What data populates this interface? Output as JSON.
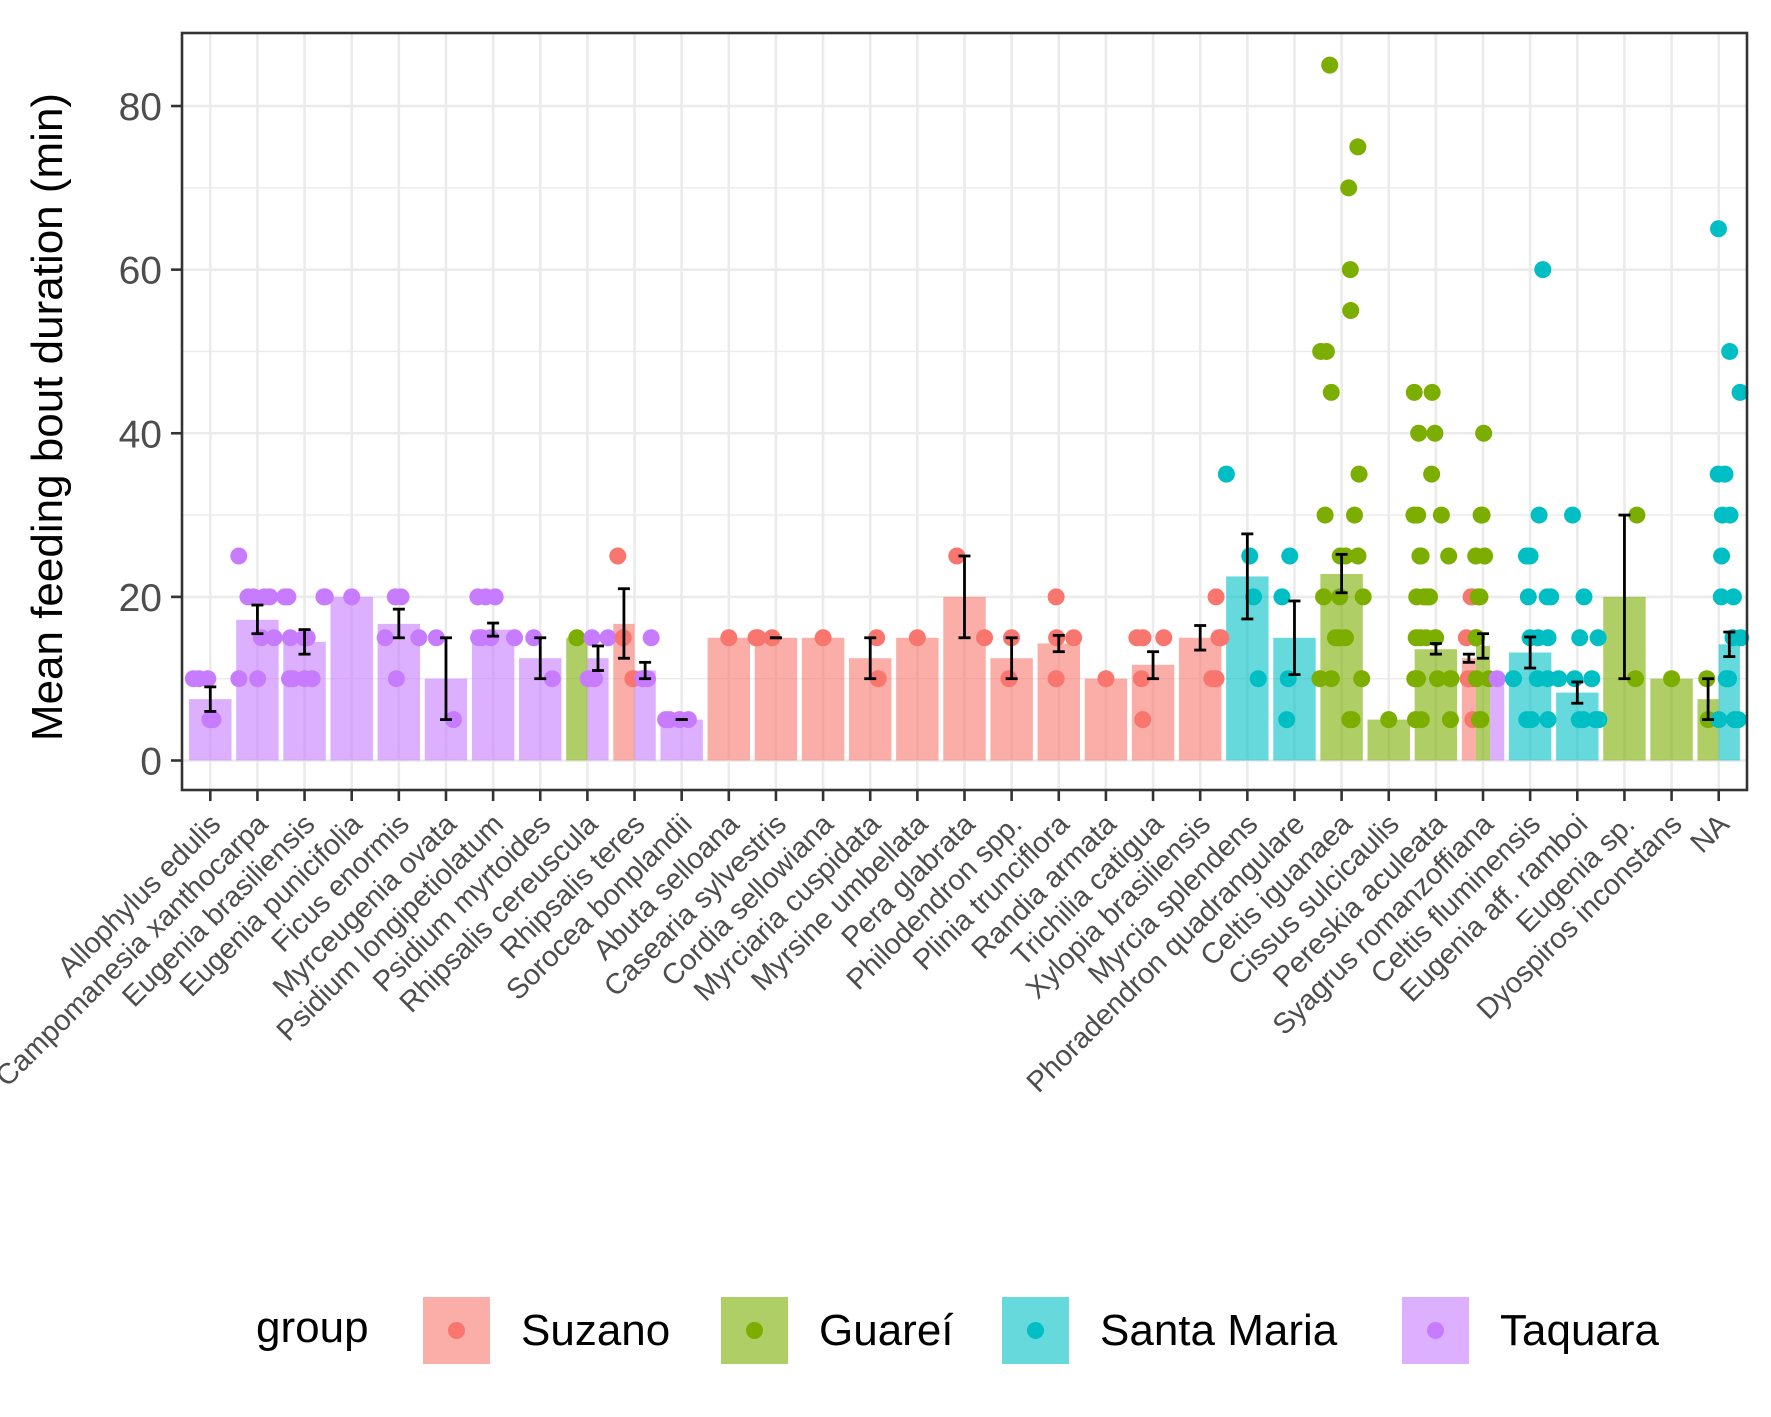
{
  "chart_data": {
    "type": "bar",
    "title": "",
    "xlabel": "",
    "ylabel": "Mean feeding bout duration (min)",
    "ylim": [
      -4,
      89
    ],
    "yticks": [
      0,
      20,
      40,
      60,
      80
    ],
    "grid": true,
    "legend_position": "bottom",
    "legend": {
      "title": "group",
      "entries": [
        {
          "name": "Suzano",
          "color": "#F8766D"
        },
        {
          "name": "Guareí",
          "color": "#7CAE00"
        },
        {
          "name": "Santa Maria",
          "color": "#00BFC4"
        },
        {
          "name": "Taquara",
          "color": "#C77CFF"
        }
      ]
    },
    "categories": [
      "Allophylus edulis",
      "Campomanesia xanthocarpa",
      "Eugenia brasiliensis",
      "Eugenia punicifolia",
      "Ficus enormis",
      "Myrceugenia ovata",
      "Psidium longipetiolatum",
      "Psidium myrtoides",
      "Rhipsalis cereuscula",
      "Rhipsalis teres",
      "Sorocea bonplandii",
      "Abuta selloana",
      "Casearia sylvestris",
      "Cordia sellowiana",
      "Myrciaria cuspidata",
      "Myrsine umbellata",
      "Pera glabrata",
      "Philodendron spp.",
      "Plinia trunciflora",
      "Randia armata",
      "Trichilia catigua",
      "Xylopia brasiliensis",
      "Myrcia splendens",
      "Phoradendron quadrangulare",
      "Celtis iguanaea",
      "Cissus sulcicaulis",
      "Pereskia aculeata",
      "Syagrus romanzoffiana",
      "Celtis fluminensis",
      "Eugenia aff. ramboi",
      "Eugenia sp.",
      "Dyospiros inconstans",
      "NA"
    ],
    "bars": [
      {
        "category": 0,
        "group": "Taquara",
        "offset": 0,
        "width": 0.9,
        "mean": 7.5,
        "err": [
          6,
          9
        ],
        "points": [
          5,
          5,
          10,
          10,
          10
        ]
      },
      {
        "category": 1,
        "group": "Taquara",
        "offset": 0,
        "width": 0.9,
        "mean": 17.2,
        "err": [
          15.5,
          19
        ],
        "points": [
          10,
          10,
          15,
          15,
          20,
          20,
          20,
          20,
          25
        ]
      },
      {
        "category": 2,
        "group": "Taquara",
        "offset": 0,
        "width": 0.9,
        "mean": 14.5,
        "err": [
          13,
          16
        ],
        "points": [
          10,
          10,
          10,
          10,
          15,
          15,
          15,
          20,
          20,
          20,
          20
        ]
      },
      {
        "category": 3,
        "group": "Taquara",
        "offset": 0,
        "width": 0.9,
        "mean": 20,
        "err": null,
        "points": [
          20
        ]
      },
      {
        "category": 4,
        "group": "Taquara",
        "offset": 0,
        "width": 0.9,
        "mean": 16.7,
        "err": [
          15,
          18.5
        ],
        "points": [
          10,
          15,
          15,
          20,
          20
        ]
      },
      {
        "category": 5,
        "group": "Taquara",
        "offset": 0,
        "width": 0.9,
        "mean": 10,
        "err": [
          5,
          15
        ],
        "points": [
          5,
          15
        ]
      },
      {
        "category": 6,
        "group": "Taquara",
        "offset": 0,
        "width": 0.9,
        "mean": 16,
        "err": [
          15.2,
          16.8
        ],
        "points": [
          15,
          15,
          15,
          15,
          20,
          20,
          20
        ]
      },
      {
        "category": 7,
        "group": "Taquara",
        "offset": 0,
        "width": 0.9,
        "mean": 12.5,
        "err": [
          10,
          15
        ],
        "points": [
          10,
          15
        ]
      },
      {
        "category": 8,
        "group": "Guareí",
        "offset": -0.225,
        "width": 0.45,
        "mean": 15,
        "err": null,
        "points": [
          15
        ]
      },
      {
        "category": 8,
        "group": "Taquara",
        "offset": 0.225,
        "width": 0.45,
        "mean": 12.5,
        "err": [
          11,
          14
        ],
        "points": [
          10,
          10,
          15,
          15
        ]
      },
      {
        "category": 9,
        "group": "Suzano",
        "offset": -0.225,
        "width": 0.45,
        "mean": 16.7,
        "err": [
          12.5,
          21
        ],
        "points": [
          10,
          15,
          25
        ]
      },
      {
        "category": 9,
        "group": "Taquara",
        "offset": 0.225,
        "width": 0.45,
        "mean": 11,
        "err": [
          10,
          12
        ],
        "points": [
          10,
          10,
          15
        ]
      },
      {
        "category": 10,
        "group": "Taquara",
        "offset": 0,
        "width": 0.9,
        "mean": 5,
        "err": [
          5,
          5
        ],
        "points": [
          5,
          5,
          5,
          5
        ]
      },
      {
        "category": 11,
        "group": "Suzano",
        "offset": 0,
        "width": 0.9,
        "mean": 15,
        "err": null,
        "points": [
          15
        ]
      },
      {
        "category": 12,
        "group": "Suzano",
        "offset": 0,
        "width": 0.9,
        "mean": 15,
        "err": [
          15,
          15
        ],
        "points": [
          15,
          15,
          15
        ]
      },
      {
        "category": 13,
        "group": "Suzano",
        "offset": 0,
        "width": 0.9,
        "mean": 15,
        "err": null,
        "points": [
          15
        ]
      },
      {
        "category": 14,
        "group": "Suzano",
        "offset": 0,
        "width": 0.9,
        "mean": 12.5,
        "err": [
          10,
          15
        ],
        "points": [
          10,
          15
        ]
      },
      {
        "category": 15,
        "group": "Suzano",
        "offset": 0,
        "width": 0.9,
        "mean": 15,
        "err": null,
        "points": [
          15
        ]
      },
      {
        "category": 16,
        "group": "Suzano",
        "offset": 0,
        "width": 0.9,
        "mean": 20,
        "err": [
          15,
          25
        ],
        "points": [
          15,
          25
        ]
      },
      {
        "category": 17,
        "group": "Suzano",
        "offset": 0,
        "width": 0.9,
        "mean": 12.5,
        "err": [
          10,
          15
        ],
        "points": [
          10,
          15
        ]
      },
      {
        "category": 18,
        "group": "Suzano",
        "offset": 0,
        "width": 0.9,
        "mean": 14.3,
        "err": [
          13.3,
          15.3
        ],
        "points": [
          10,
          15,
          15,
          20
        ]
      },
      {
        "category": 19,
        "group": "Suzano",
        "offset": 0,
        "width": 0.9,
        "mean": 10,
        "err": null,
        "points": [
          10
        ]
      },
      {
        "category": 20,
        "group": "Suzano",
        "offset": 0,
        "width": 0.9,
        "mean": 11.7,
        "err": [
          10,
          13.3
        ],
        "points": [
          5,
          10,
          15,
          15,
          15
        ]
      },
      {
        "category": 21,
        "group": "Suzano",
        "offset": 0,
        "width": 0.9,
        "mean": 15,
        "err": [
          13.5,
          16.5
        ],
        "points": [
          10,
          10,
          15,
          15,
          20
        ]
      },
      {
        "category": 22,
        "group": "Santa Maria",
        "offset": 0,
        "width": 0.9,
        "mean": 22.5,
        "err": [
          17.3,
          27.7
        ],
        "points": [
          10,
          20,
          25,
          35
        ]
      },
      {
        "category": 23,
        "group": "Santa Maria",
        "offset": 0,
        "width": 0.9,
        "mean": 15,
        "err": [
          10.5,
          19.5
        ],
        "points": [
          5,
          10,
          20,
          25
        ]
      },
      {
        "category": 24,
        "group": "Guareí",
        "offset": 0,
        "width": 0.9,
        "mean": 22.8,
        "err": [
          20.5,
          25.2
        ],
        "points": [
          5,
          5,
          10,
          10,
          10,
          15,
          15,
          15,
          20,
          20,
          20,
          25,
          25,
          25,
          30,
          30,
          35,
          45,
          50,
          50,
          55,
          60,
          70,
          75,
          85
        ]
      },
      {
        "category": 25,
        "group": "Guareí",
        "offset": 0,
        "width": 0.9,
        "mean": 5,
        "err": null,
        "points": [
          5
        ]
      },
      {
        "category": 26,
        "group": "Guareí",
        "offset": 0,
        "width": 0.9,
        "mean": 13.6,
        "err": [
          13,
          14.3
        ],
        "points": [
          5,
          5,
          5,
          10,
          10,
          10,
          10,
          10,
          15,
          15,
          15,
          15,
          15,
          20,
          20,
          20,
          20,
          25,
          25,
          25,
          30,
          30,
          30,
          35,
          40,
          40,
          45,
          45
        ]
      },
      {
        "category": 27,
        "group": "Suzano",
        "offset": -0.3,
        "width": 0.3,
        "mean": 12.5,
        "err": [
          12,
          13
        ],
        "points": [
          5,
          10,
          10,
          15,
          15,
          20,
          20
        ]
      },
      {
        "category": 27,
        "group": "Guareí",
        "offset": 0,
        "width": 0.3,
        "mean": 14,
        "err": [
          12.5,
          15.5
        ],
        "points": [
          5,
          5,
          10,
          10,
          15,
          15,
          20,
          20,
          25,
          25,
          30,
          30,
          40
        ]
      },
      {
        "category": 27,
        "group": "Taquara",
        "offset": 0.3,
        "width": 0.3,
        "mean": 10,
        "err": null,
        "points": [
          10
        ]
      },
      {
        "category": 28,
        "group": "Santa Maria",
        "offset": 0,
        "width": 0.9,
        "mean": 13.2,
        "err": [
          11.3,
          15.1
        ],
        "points": [
          5,
          5,
          5,
          10,
          10,
          10,
          15,
          15,
          15,
          20,
          20,
          20,
          25,
          25,
          30,
          60
        ]
      },
      {
        "category": 29,
        "group": "Santa Maria",
        "offset": 0,
        "width": 0.9,
        "mean": 8.3,
        "err": [
          7,
          9.6
        ],
        "points": [
          5,
          5,
          5,
          5,
          10,
          10,
          10,
          15,
          15,
          20,
          30
        ]
      },
      {
        "category": 30,
        "group": "Guareí",
        "offset": 0,
        "width": 0.9,
        "mean": 20,
        "err": [
          10,
          30
        ],
        "points": [
          10,
          30
        ]
      },
      {
        "category": 31,
        "group": "Guareí",
        "offset": 0,
        "width": 0.9,
        "mean": 10,
        "err": null,
        "points": [
          10
        ]
      },
      {
        "category": 32,
        "group": "Guareí",
        "offset": -0.225,
        "width": 0.45,
        "mean": 7.5,
        "err": [
          5,
          10
        ],
        "points": [
          5,
          10
        ]
      },
      {
        "category": 32,
        "group": "Santa Maria",
        "offset": 0.225,
        "width": 0.45,
        "mean": 14.2,
        "err": [
          12.7,
          15.7
        ],
        "points": [
          5,
          5,
          5,
          10,
          10,
          15,
          15,
          20,
          20,
          25,
          30,
          30,
          35,
          35,
          45,
          50,
          65
        ]
      }
    ]
  }
}
